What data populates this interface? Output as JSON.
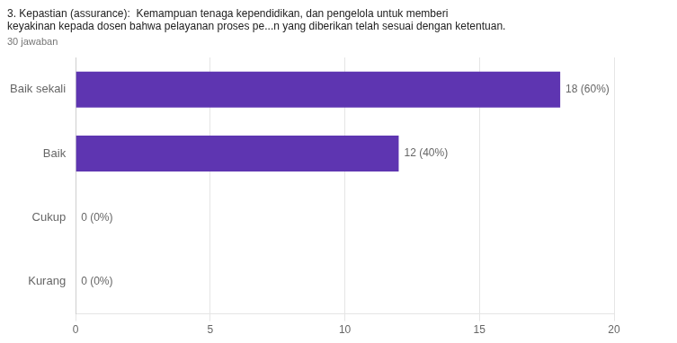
{
  "chart_data": {
    "type": "bar",
    "orientation": "horizontal",
    "title": [
      "3. Kepastian (assurance):  Kemampuan tenaga kependidikan, dan pengelola untuk memberi",
      "keyakinan kepada dosen bahwa pelayanan proses pe...n yang diberikan telah sesuai dengan ketentuan."
    ],
    "subtitle": "30 jawaban",
    "categories": [
      "Baik sekali",
      "Baik",
      "Cukup",
      "Kurang"
    ],
    "values": [
      18,
      12,
      0,
      0
    ],
    "value_labels": [
      "18 (60%)",
      "12 (40%)",
      "0 (0%)",
      "0 (0%)"
    ],
    "data_labels": true,
    "color": "#5e35b1",
    "xlim": [
      0,
      20
    ],
    "xticks": [
      0,
      5,
      10,
      15,
      20
    ],
    "grid": true
  }
}
